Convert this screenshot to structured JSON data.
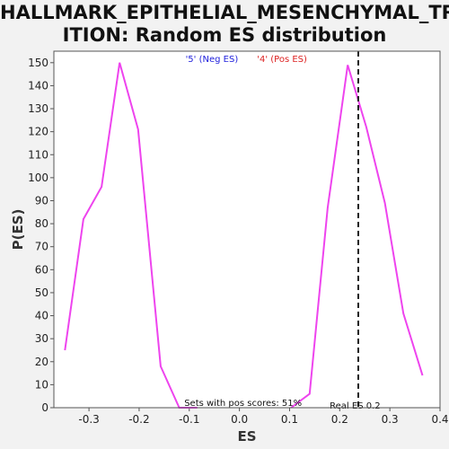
{
  "chart_data": {
    "type": "line",
    "title_line1": "HALLMARK_EPITHELIAL_MESENCHYMAL_TRANS",
    "title_line2": "ITION: Random ES distribution",
    "xlabel": "ES",
    "ylabel": "P(ES)",
    "xlim": [
      -0.37,
      0.4
    ],
    "ylim": [
      0,
      155
    ],
    "x_ticks": [
      -0.3,
      -0.2,
      -0.1,
      0.0,
      0.1,
      0.2,
      0.3,
      0.4
    ],
    "x_tick_labels": [
      "-0.3",
      "-0.2",
      "-0.1",
      "0.0",
      "0.1",
      "0.2",
      "0.3",
      "0.4"
    ],
    "y_ticks": [
      0,
      10,
      20,
      30,
      40,
      50,
      60,
      70,
      80,
      90,
      100,
      110,
      120,
      130,
      140,
      150
    ],
    "grid": false,
    "series": [
      {
        "name": "'5' (Neg ES)",
        "color": "#2222dd",
        "x": [
          -0.348,
          -0.311,
          -0.275,
          -0.239,
          -0.202,
          -0.157,
          -0.12,
          -0.084
        ],
        "y": [
          25,
          82,
          96,
          150,
          121,
          18,
          0,
          0
        ]
      },
      {
        "name": "'4' (Pos ES)",
        "color": "#dd2222",
        "x": [
          0.103,
          0.14,
          0.176,
          0.216,
          0.253,
          0.29,
          0.327,
          0.365
        ],
        "y": [
          0,
          6,
          87,
          149,
          122,
          89,
          41,
          14
        ]
      }
    ],
    "line_color": "#ee44ee",
    "real_es": 0.237,
    "real_es_label": "Real ES 0.2",
    "pos_scores_note": "Sets with pos scores: 51%"
  }
}
